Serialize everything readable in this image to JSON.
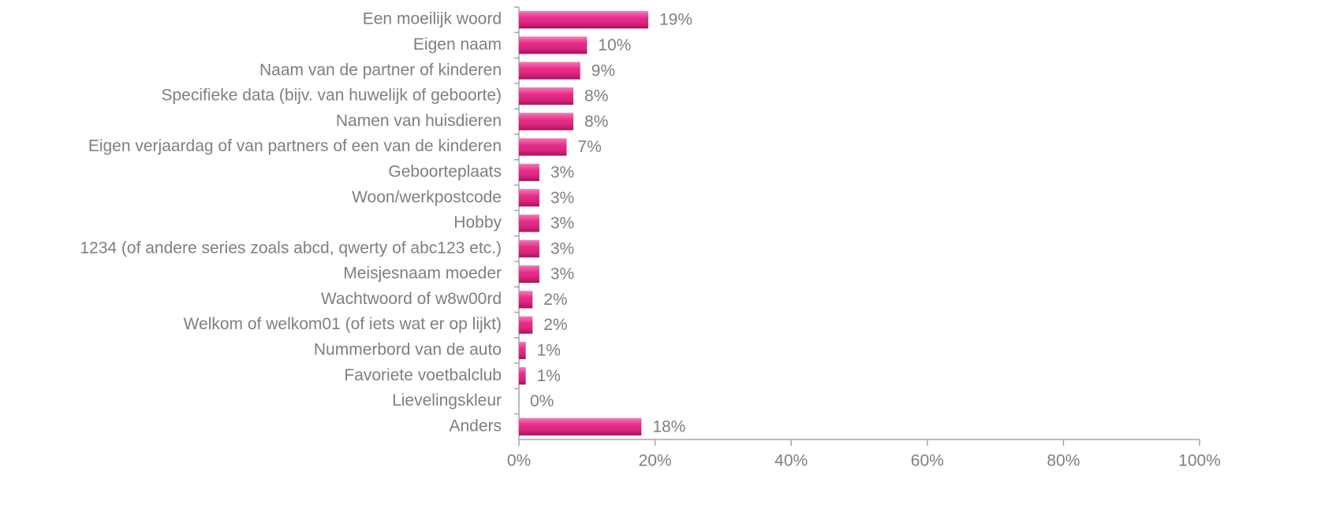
{
  "chart_data": {
    "type": "bar",
    "orientation": "horizontal",
    "categories": [
      "Een moeilijk woord",
      "Eigen naam",
      "Naam van de partner of kinderen",
      "Specifieke data (bijv. van huwelijk of geboorte)",
      "Namen van huisdieren",
      "Eigen verjaardag of van partners of een van de kinderen",
      "Geboorteplaats",
      "Woon/werkpostcode",
      "Hobby",
      "1234 (of andere series zoals abcd, qwerty of abc123 etc.)",
      "Meisjesnaam moeder",
      "Wachtwoord of w8w00rd",
      "Welkom of welkom01 (of iets wat er op lijkt)",
      "Nummerbord van de auto",
      "Favoriete voetbalclub",
      "Lievelingskleur",
      "Anders"
    ],
    "values": [
      19,
      10,
      9,
      8,
      8,
      7,
      3,
      3,
      3,
      3,
      3,
      2,
      2,
      1,
      1,
      0,
      18
    ],
    "value_labels": [
      "19%",
      "10%",
      "9%",
      "8%",
      "8%",
      "7%",
      "3%",
      "3%",
      "3%",
      "3%",
      "3%",
      "2%",
      "2%",
      "1%",
      "1%",
      "0%",
      "18%"
    ],
    "color": "#e5127a",
    "xlim": [
      0,
      100
    ],
    "xticks": [
      {
        "value": 0,
        "label": "0%"
      },
      {
        "value": 20,
        "label": "20%"
      },
      {
        "value": 40,
        "label": "40%"
      },
      {
        "value": 60,
        "label": "60%"
      },
      {
        "value": 80,
        "label": "80%"
      },
      {
        "value": 100,
        "label": "100%"
      }
    ]
  }
}
